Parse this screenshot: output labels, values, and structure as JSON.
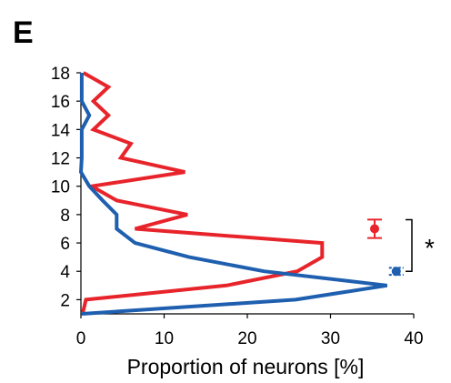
{
  "panel_label": "E",
  "chart_data": {
    "type": "line",
    "xlabel": "Proportion of neurons [%]",
    "ylabel": "",
    "xlim": [
      0,
      40
    ],
    "ylim": [
      1,
      18
    ],
    "xticks": [
      0,
      10,
      20,
      30,
      40
    ],
    "yticks": [
      2,
      4,
      6,
      8,
      10,
      12,
      14,
      16,
      18
    ],
    "grid": false,
    "legend": "none",
    "series": [
      {
        "color": "#e8242b",
        "points": [
          [
            0.2,
            1
          ],
          [
            0.6,
            2
          ],
          [
            17.5,
            3
          ],
          [
            26.0,
            4
          ],
          [
            29.0,
            5
          ],
          [
            29.0,
            6
          ],
          [
            6.5,
            7
          ],
          [
            12.8,
            8
          ],
          [
            4.3,
            9
          ],
          [
            1.3,
            10
          ],
          [
            12.5,
            11
          ],
          [
            4.8,
            12
          ],
          [
            6.0,
            13
          ],
          [
            1.5,
            14
          ],
          [
            3.3,
            15
          ],
          [
            1.5,
            16
          ],
          [
            3.3,
            17
          ],
          [
            0.3,
            18
          ]
        ],
        "summary": {
          "mean_x": 35.3,
          "mean_y": 7.0,
          "err_y": 0.65
        }
      },
      {
        "color": "#1f5faf",
        "points": [
          [
            0.1,
            1
          ],
          [
            25.8,
            2
          ],
          [
            36.8,
            3
          ],
          [
            22.0,
            4
          ],
          [
            13.0,
            5
          ],
          [
            6.5,
            6
          ],
          [
            4.3,
            7
          ],
          [
            4.3,
            8
          ],
          [
            2.6,
            9
          ],
          [
            1.0,
            10
          ],
          [
            0.0,
            11
          ],
          [
            0.1,
            12
          ],
          [
            0.1,
            13
          ],
          [
            0.1,
            14
          ],
          [
            1.0,
            15
          ],
          [
            0.1,
            16
          ],
          [
            0.1,
            17
          ],
          [
            0.1,
            18
          ]
        ],
        "summary": {
          "mean_x": 37.9,
          "mean_y": 4.0,
          "err_y": 0.25
        }
      }
    ],
    "annotation": {
      "text": "*",
      "from_y": 4.0,
      "to_y": 7.0
    }
  }
}
